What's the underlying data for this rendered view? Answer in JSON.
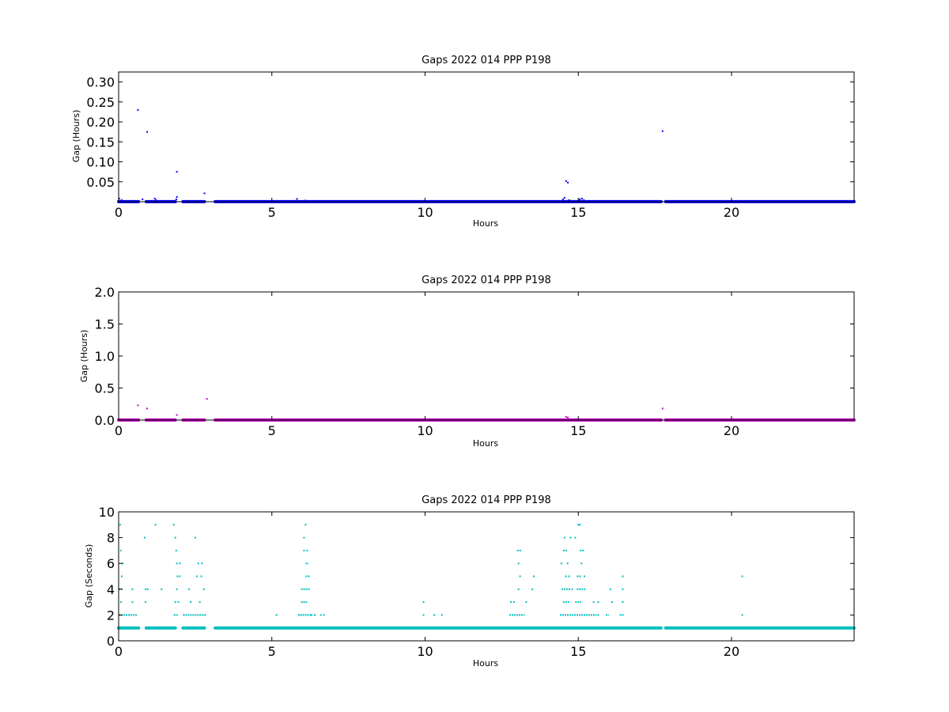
{
  "chart_data": [
    {
      "type": "scatter",
      "title": "Gaps 2022 014 PPP  P198",
      "xlabel": "Hours",
      "ylabel": "Gap (Hours)",
      "xlim": [
        0,
        24
      ],
      "ylim": [
        0,
        0.325
      ],
      "xticks": [
        0,
        5,
        10,
        15,
        20
      ],
      "xtick_labels": [
        "0",
        "5",
        "10",
        "15",
        "20"
      ],
      "yticks": [
        0.05,
        0.1,
        0.15,
        0.2,
        0.25,
        0.3
      ],
      "ytick_labels": [
        "0.05",
        "0.10",
        "0.15",
        "0.20",
        "0.25",
        "0.30"
      ],
      "grid": false,
      "color": "#0000ff",
      "baseline": {
        "y": 0.0003,
        "segments": [
          [
            0.0,
            0.65
          ],
          [
            0.9,
            1.85
          ],
          [
            2.1,
            2.8
          ],
          [
            3.15,
            17.7
          ],
          [
            17.85,
            24.0
          ]
        ]
      },
      "points": [
        [
          0.02,
          0.008
        ],
        [
          0.1,
          0.004
        ],
        [
          0.63,
          0.23
        ],
        [
          0.78,
          0.006
        ],
        [
          0.93,
          0.175
        ],
        [
          1.18,
          0.008
        ],
        [
          1.22,
          0.004
        ],
        [
          1.9,
          0.075
        ],
        [
          1.9,
          0.012
        ],
        [
          1.88,
          0.006
        ],
        [
          2.8,
          0.021
        ],
        [
          5.82,
          0.007
        ],
        [
          6.1,
          0.003
        ],
        [
          14.5,
          0.006
        ],
        [
          14.55,
          0.01
        ],
        [
          14.6,
          0.052
        ],
        [
          14.66,
          0.048
        ],
        [
          14.7,
          0.004
        ],
        [
          15.05,
          0.006
        ],
        [
          15.12,
          0.008
        ],
        [
          15.18,
          0.004
        ],
        [
          17.75,
          0.177
        ]
      ]
    },
    {
      "type": "scatter",
      "title": "Gaps 2022 014 PPP  P198",
      "xlabel": "Hours",
      "ylabel": "Gap (Hours)",
      "xlim": [
        0,
        24
      ],
      "ylim": [
        0,
        2.0
      ],
      "xticks": [
        0,
        5,
        10,
        15,
        20
      ],
      "xtick_labels": [
        "0",
        "5",
        "10",
        "15",
        "20"
      ],
      "yticks": [
        0.0,
        0.5,
        1.0,
        1.5,
        2.0
      ],
      "ytick_labels": [
        "0.0",
        "0.5",
        "1.0",
        "1.5",
        "2.0"
      ],
      "grid": false,
      "color": "#bf00bf",
      "baseline": {
        "y": 0.002,
        "segments": [
          [
            0.0,
            0.65
          ],
          [
            0.9,
            1.85
          ],
          [
            2.1,
            2.8
          ],
          [
            3.15,
            17.7
          ],
          [
            17.85,
            24.0
          ]
        ]
      },
      "points": [
        [
          0.63,
          0.23
        ],
        [
          0.93,
          0.18
        ],
        [
          1.9,
          0.08
        ],
        [
          2.88,
          0.33
        ],
        [
          14.6,
          0.05
        ],
        [
          14.66,
          0.04
        ],
        [
          17.75,
          0.18
        ]
      ]
    },
    {
      "type": "scatter",
      "title": "Gaps 2022 014 PPP  P198",
      "xlabel": "Hours",
      "ylabel": "Gap (Seconds)",
      "xlim": [
        0,
        24
      ],
      "ylim": [
        0,
        10
      ],
      "xticks": [
        0,
        5,
        10,
        15,
        20
      ],
      "xtick_labels": [
        "0",
        "5",
        "10",
        "15",
        "20"
      ],
      "yticks": [
        0,
        2,
        4,
        6,
        8,
        10
      ],
      "ytick_labels": [
        "0",
        "2",
        "4",
        "6",
        "8",
        "10"
      ],
      "grid": false,
      "color": "#00bfbf",
      "baseline": {
        "y": 1,
        "segments": [
          [
            0.0,
            0.65
          ],
          [
            0.9,
            1.85
          ],
          [
            2.1,
            2.8
          ],
          [
            3.15,
            17.7
          ],
          [
            17.85,
            24.0
          ]
        ]
      },
      "runs": [
        {
          "y": 2,
          "from": 0.0,
          "to": 0.6
        },
        {
          "y": 2,
          "from": 1.8,
          "to": 1.95
        },
        {
          "y": 2,
          "from": 2.1,
          "to": 2.85
        },
        {
          "y": 2,
          "from": 5.85,
          "to": 6.3
        },
        {
          "y": 2,
          "from": 12.75,
          "to": 13.25
        },
        {
          "y": 2,
          "from": 14.4,
          "to": 15.6
        },
        {
          "y": 2,
          "from": 15.9,
          "to": 16.0
        },
        {
          "y": 2,
          "from": 16.35,
          "to": 16.5
        },
        {
          "y": 4,
          "from": 0.0,
          "to": 0.12
        },
        {
          "y": 4,
          "from": 5.95,
          "to": 6.25
        },
        {
          "y": 4,
          "from": 14.45,
          "to": 14.75
        },
        {
          "y": 4,
          "from": 14.95,
          "to": 15.25
        },
        {
          "y": 3,
          "from": 5.95,
          "to": 6.15
        },
        {
          "y": 3,
          "from": 14.5,
          "to": 14.7
        },
        {
          "y": 3,
          "from": 14.9,
          "to": 15.1
        },
        {
          "y": 5,
          "from": 6.1,
          "to": 6.25
        },
        {
          "y": 5,
          "from": 14.95,
          "to": 15.1
        },
        {
          "y": 6,
          "from": 6.1,
          "to": 6.2
        },
        {
          "y": 7,
          "from": 13.0,
          "to": 13.15
        },
        {
          "y": 7,
          "from": 14.5,
          "to": 14.65
        },
        {
          "y": 7,
          "from": 15.05,
          "to": 15.2
        }
      ],
      "points": [
        [
          0.05,
          9
        ],
        [
          0.07,
          7
        ],
        [
          0.1,
          5
        ],
        [
          0.08,
          3
        ],
        [
          0.13,
          6
        ],
        [
          0.45,
          3
        ],
        [
          0.45,
          4
        ],
        [
          0.85,
          8
        ],
        [
          0.88,
          4
        ],
        [
          0.88,
          3
        ],
        [
          0.95,
          4
        ],
        [
          1.2,
          9
        ],
        [
          1.4,
          4
        ],
        [
          1.8,
          9
        ],
        [
          1.85,
          8
        ],
        [
          1.88,
          7
        ],
        [
          1.9,
          6
        ],
        [
          1.92,
          5
        ],
        [
          1.95,
          3
        ],
        [
          1.85,
          3
        ],
        [
          1.9,
          4
        ],
        [
          2.0,
          5
        ],
        [
          2.0,
          6
        ],
        [
          2.3,
          4
        ],
        [
          2.35,
          3
        ],
        [
          2.5,
          8
        ],
        [
          2.55,
          5
        ],
        [
          2.6,
          6
        ],
        [
          2.65,
          3
        ],
        [
          2.7,
          5
        ],
        [
          2.72,
          6
        ],
        [
          2.78,
          4
        ],
        [
          5.15,
          2
        ],
        [
          5.95,
          2
        ],
        [
          6.05,
          7
        ],
        [
          6.1,
          9
        ],
        [
          6.05,
          8
        ],
        [
          6.15,
          7
        ],
        [
          6.3,
          2
        ],
        [
          6.4,
          2
        ],
        [
          6.6,
          2
        ],
        [
          6.7,
          2
        ],
        [
          9.95,
          3
        ],
        [
          9.95,
          2
        ],
        [
          10.3,
          2
        ],
        [
          10.55,
          2
        ],
        [
          12.8,
          3
        ],
        [
          12.9,
          3
        ],
        [
          13.05,
          6
        ],
        [
          13.1,
          5
        ],
        [
          13.05,
          4
        ],
        [
          13.3,
          3
        ],
        [
          13.5,
          4
        ],
        [
          13.55,
          5
        ],
        [
          14.45,
          6
        ],
        [
          14.55,
          8
        ],
        [
          14.6,
          5
        ],
        [
          14.65,
          6
        ],
        [
          14.7,
          5
        ],
        [
          14.75,
          8
        ],
        [
          14.8,
          4
        ],
        [
          14.9,
          8
        ],
        [
          15.0,
          9
        ],
        [
          15.05,
          9
        ],
        [
          15.1,
          6
        ],
        [
          15.2,
          5
        ],
        [
          15.5,
          3
        ],
        [
          15.65,
          2
        ],
        [
          15.65,
          3
        ],
        [
          16.05,
          4
        ],
        [
          16.1,
          3
        ],
        [
          16.45,
          4
        ],
        [
          16.45,
          5
        ],
        [
          16.45,
          3
        ],
        [
          20.35,
          5
        ],
        [
          20.35,
          2
        ]
      ]
    }
  ]
}
